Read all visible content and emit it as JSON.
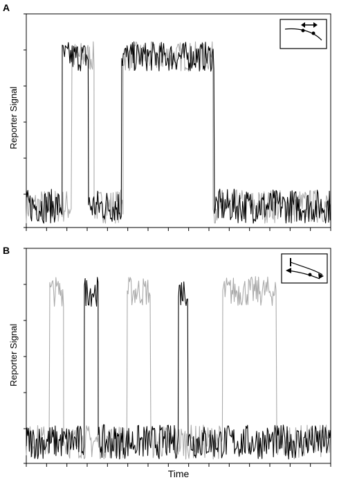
{
  "chart_data": [
    {
      "type": "line",
      "panel_label": "A",
      "title": "",
      "xlabel": "",
      "ylabel": "Reporter Signal",
      "xlim": [
        0,
        440
      ],
      "ylim": [
        0,
        100
      ],
      "grid": false,
      "inset": "top-right",
      "series": [
        {
          "color": "#000000",
          "baseline": 10,
          "high": 80,
          "segments": [
            {
              "x0": 0,
              "x1": 52,
              "level": "low"
            },
            {
              "x0": 52,
              "x1": 90,
              "level": "high"
            },
            {
              "x0": 90,
              "x1": 138,
              "level": "low"
            },
            {
              "x0": 138,
              "x1": 272,
              "level": "high"
            },
            {
              "x0": 272,
              "x1": 440,
              "level": "low"
            }
          ]
        },
        {
          "color": "#aaaaaa",
          "baseline": 10,
          "high": 80,
          "segments": [
            {
              "x0": 0,
              "x1": 66,
              "level": "low"
            },
            {
              "x0": 66,
              "x1": 98,
              "level": "high"
            },
            {
              "x0": 98,
              "x1": 140,
              "level": "low"
            },
            {
              "x0": 140,
              "x1": 270,
              "level": "high"
            },
            {
              "x0": 270,
              "x1": 440,
              "level": "low"
            }
          ]
        }
      ]
    },
    {
      "type": "line",
      "panel_label": "B",
      "title": "",
      "xlabel": "Time",
      "ylabel": "Reporter Signal",
      "xlim": [
        0,
        440
      ],
      "ylim": [
        0,
        100
      ],
      "grid": false,
      "inset": "top-right",
      "series": [
        {
          "color": "#000000",
          "baseline": 10,
          "high": 80,
          "segments": [
            {
              "x0": 0,
              "x1": 84,
              "level": "low"
            },
            {
              "x0": 84,
              "x1": 104,
              "level": "high"
            },
            {
              "x0": 104,
              "x1": 220,
              "level": "low"
            },
            {
              "x0": 220,
              "x1": 234,
              "level": "high"
            },
            {
              "x0": 234,
              "x1": 440,
              "level": "low"
            }
          ]
        },
        {
          "color": "#aaaaaa",
          "baseline": 10,
          "high": 80,
          "segments": [
            {
              "x0": 0,
              "x1": 34,
              "level": "low"
            },
            {
              "x0": 34,
              "x1": 54,
              "level": "high"
            },
            {
              "x0": 54,
              "x1": 146,
              "level": "low"
            },
            {
              "x0": 146,
              "x1": 180,
              "level": "high"
            },
            {
              "x0": 180,
              "x1": 284,
              "level": "low"
            },
            {
              "x0": 284,
              "x1": 362,
              "level": "high"
            },
            {
              "x0": 362,
              "x1": 440,
              "level": "low"
            }
          ]
        }
      ]
    }
  ]
}
